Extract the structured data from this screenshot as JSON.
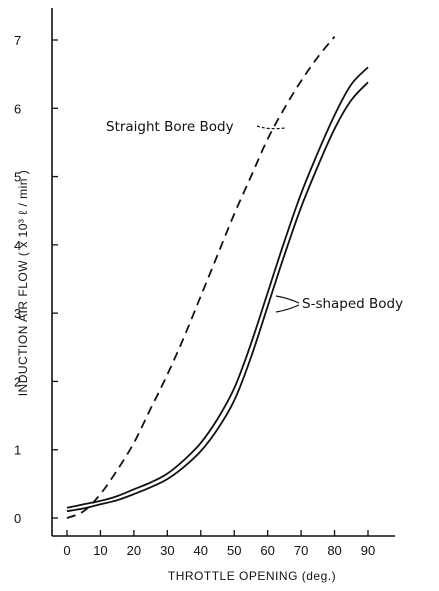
{
  "chart_data": {
    "type": "line",
    "title": "",
    "xlabel": "THROTTLE OPENING (deg.)",
    "ylabel": "INDUCTION AIR FLOW  ( x 10³ ℓ / min )",
    "xlim": [
      0,
      95
    ],
    "ylim": [
      0,
      7.5
    ],
    "x_ticks": [
      "0",
      "10",
      "20",
      "30",
      "40",
      "50",
      "60",
      "70",
      "80",
      "90"
    ],
    "y_ticks": [
      "0",
      "1",
      "2",
      "3",
      "4",
      "5",
      "6",
      "7"
    ],
    "grid": false,
    "series": [
      {
        "name": "Straight Bore Body",
        "style": "dashed",
        "x": [
          0,
          5,
          10,
          15,
          20,
          25,
          30,
          35,
          40,
          45,
          50,
          55,
          60,
          65,
          70,
          75,
          80
        ],
        "y": [
          0.0,
          0.1,
          0.35,
          0.7,
          1.1,
          1.6,
          2.1,
          2.65,
          3.25,
          3.85,
          4.45,
          5.0,
          5.55,
          6.0,
          6.4,
          6.75,
          7.05
        ]
      },
      {
        "name": "S-shaped Body",
        "style": "solid",
        "x": [
          0,
          5,
          10,
          15,
          20,
          25,
          30,
          35,
          40,
          45,
          50,
          55,
          60,
          65,
          70,
          75,
          80,
          85,
          90
        ],
        "y": [
          0.15,
          0.2,
          0.25,
          0.32,
          0.42,
          0.52,
          0.65,
          0.85,
          1.1,
          1.45,
          1.9,
          2.55,
          3.3,
          4.05,
          4.75,
          5.35,
          5.9,
          6.35,
          6.6
        ]
      },
      {
        "name": "S-shaped Body",
        "style": "solid",
        "x": [
          0,
          5,
          10,
          15,
          20,
          25,
          30,
          35,
          40,
          45,
          50,
          55,
          60,
          65,
          70,
          75,
          80,
          85,
          90
        ],
        "y": [
          0.1,
          0.14,
          0.2,
          0.26,
          0.35,
          0.45,
          0.57,
          0.75,
          0.98,
          1.3,
          1.72,
          2.35,
          3.1,
          3.85,
          4.55,
          5.15,
          5.7,
          6.12,
          6.38
        ]
      }
    ],
    "annotations": [
      {
        "text": "Straight Bore Body",
        "target_series": 0
      },
      {
        "text": "S-shaped Body",
        "target_series": [
          1,
          2
        ]
      }
    ],
    "colors": {
      "line": "#111111",
      "background": "#ffffff"
    }
  }
}
